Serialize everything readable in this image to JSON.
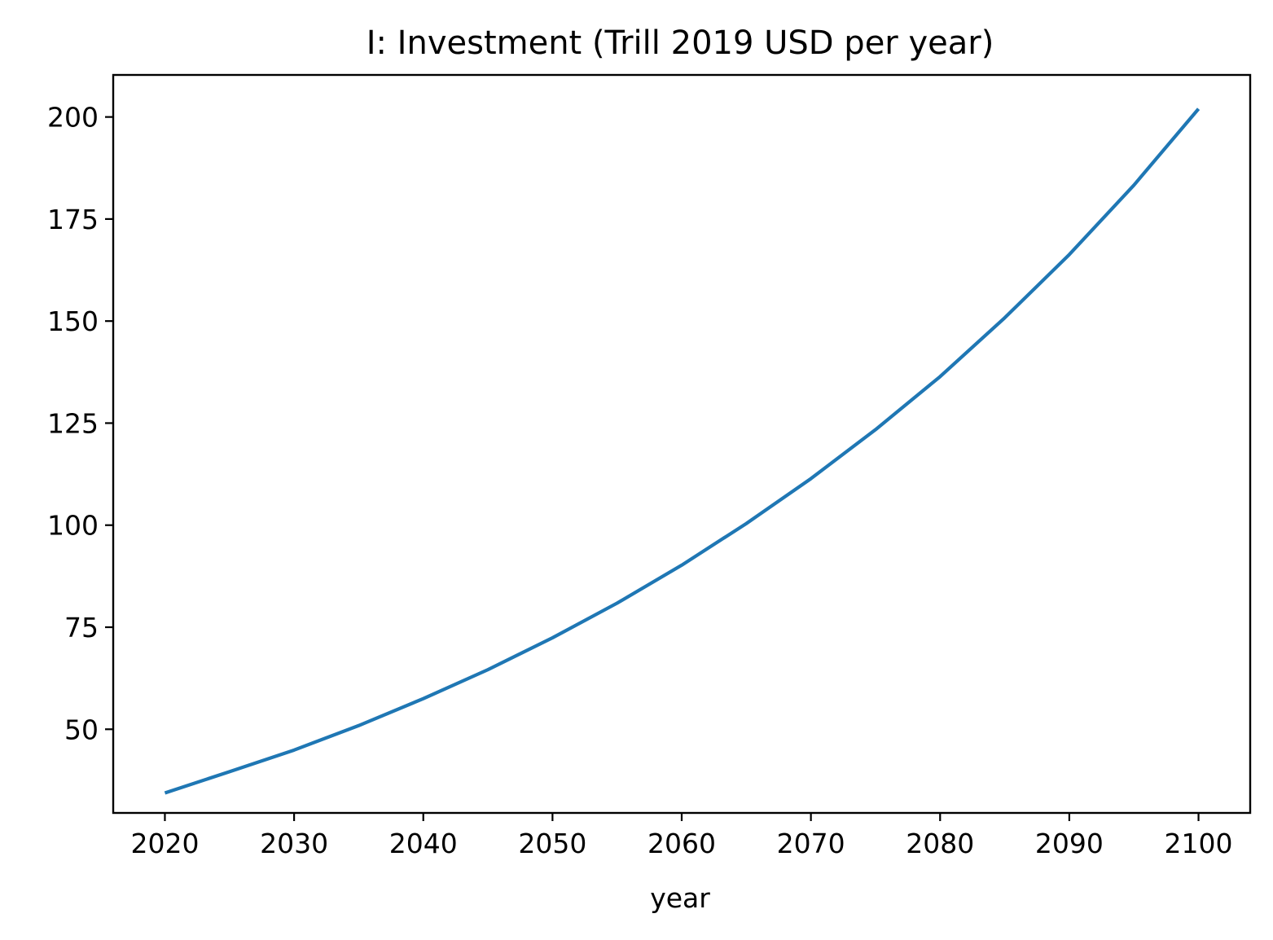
{
  "chart_data": {
    "type": "line",
    "title": "I: Investment (Trill 2019 USD per year)",
    "xlabel": "year",
    "ylabel": "",
    "xlim": [
      2016,
      2104
    ],
    "ylim": [
      29.5,
      210.3
    ],
    "xticks": [
      2020,
      2030,
      2040,
      2050,
      2060,
      2070,
      2080,
      2090,
      2100
    ],
    "yticks": [
      50,
      75,
      100,
      125,
      150,
      175,
      200
    ],
    "grid": false,
    "legend": "none",
    "series": [
      {
        "color": "#1f77b4",
        "x": [
          2020,
          2025,
          2030,
          2035,
          2040,
          2045,
          2050,
          2055,
          2060,
          2065,
          2070,
          2075,
          2080,
          2085,
          2090,
          2095,
          2100
        ],
        "y": [
          34.4,
          39.6,
          44.9,
          50.9,
          57.5,
          64.6,
          72.4,
          80.9,
          90.2,
          100.4,
          111.4,
          123.4,
          136.4,
          150.8,
          166.3,
          183.3,
          202.0
        ]
      }
    ]
  }
}
